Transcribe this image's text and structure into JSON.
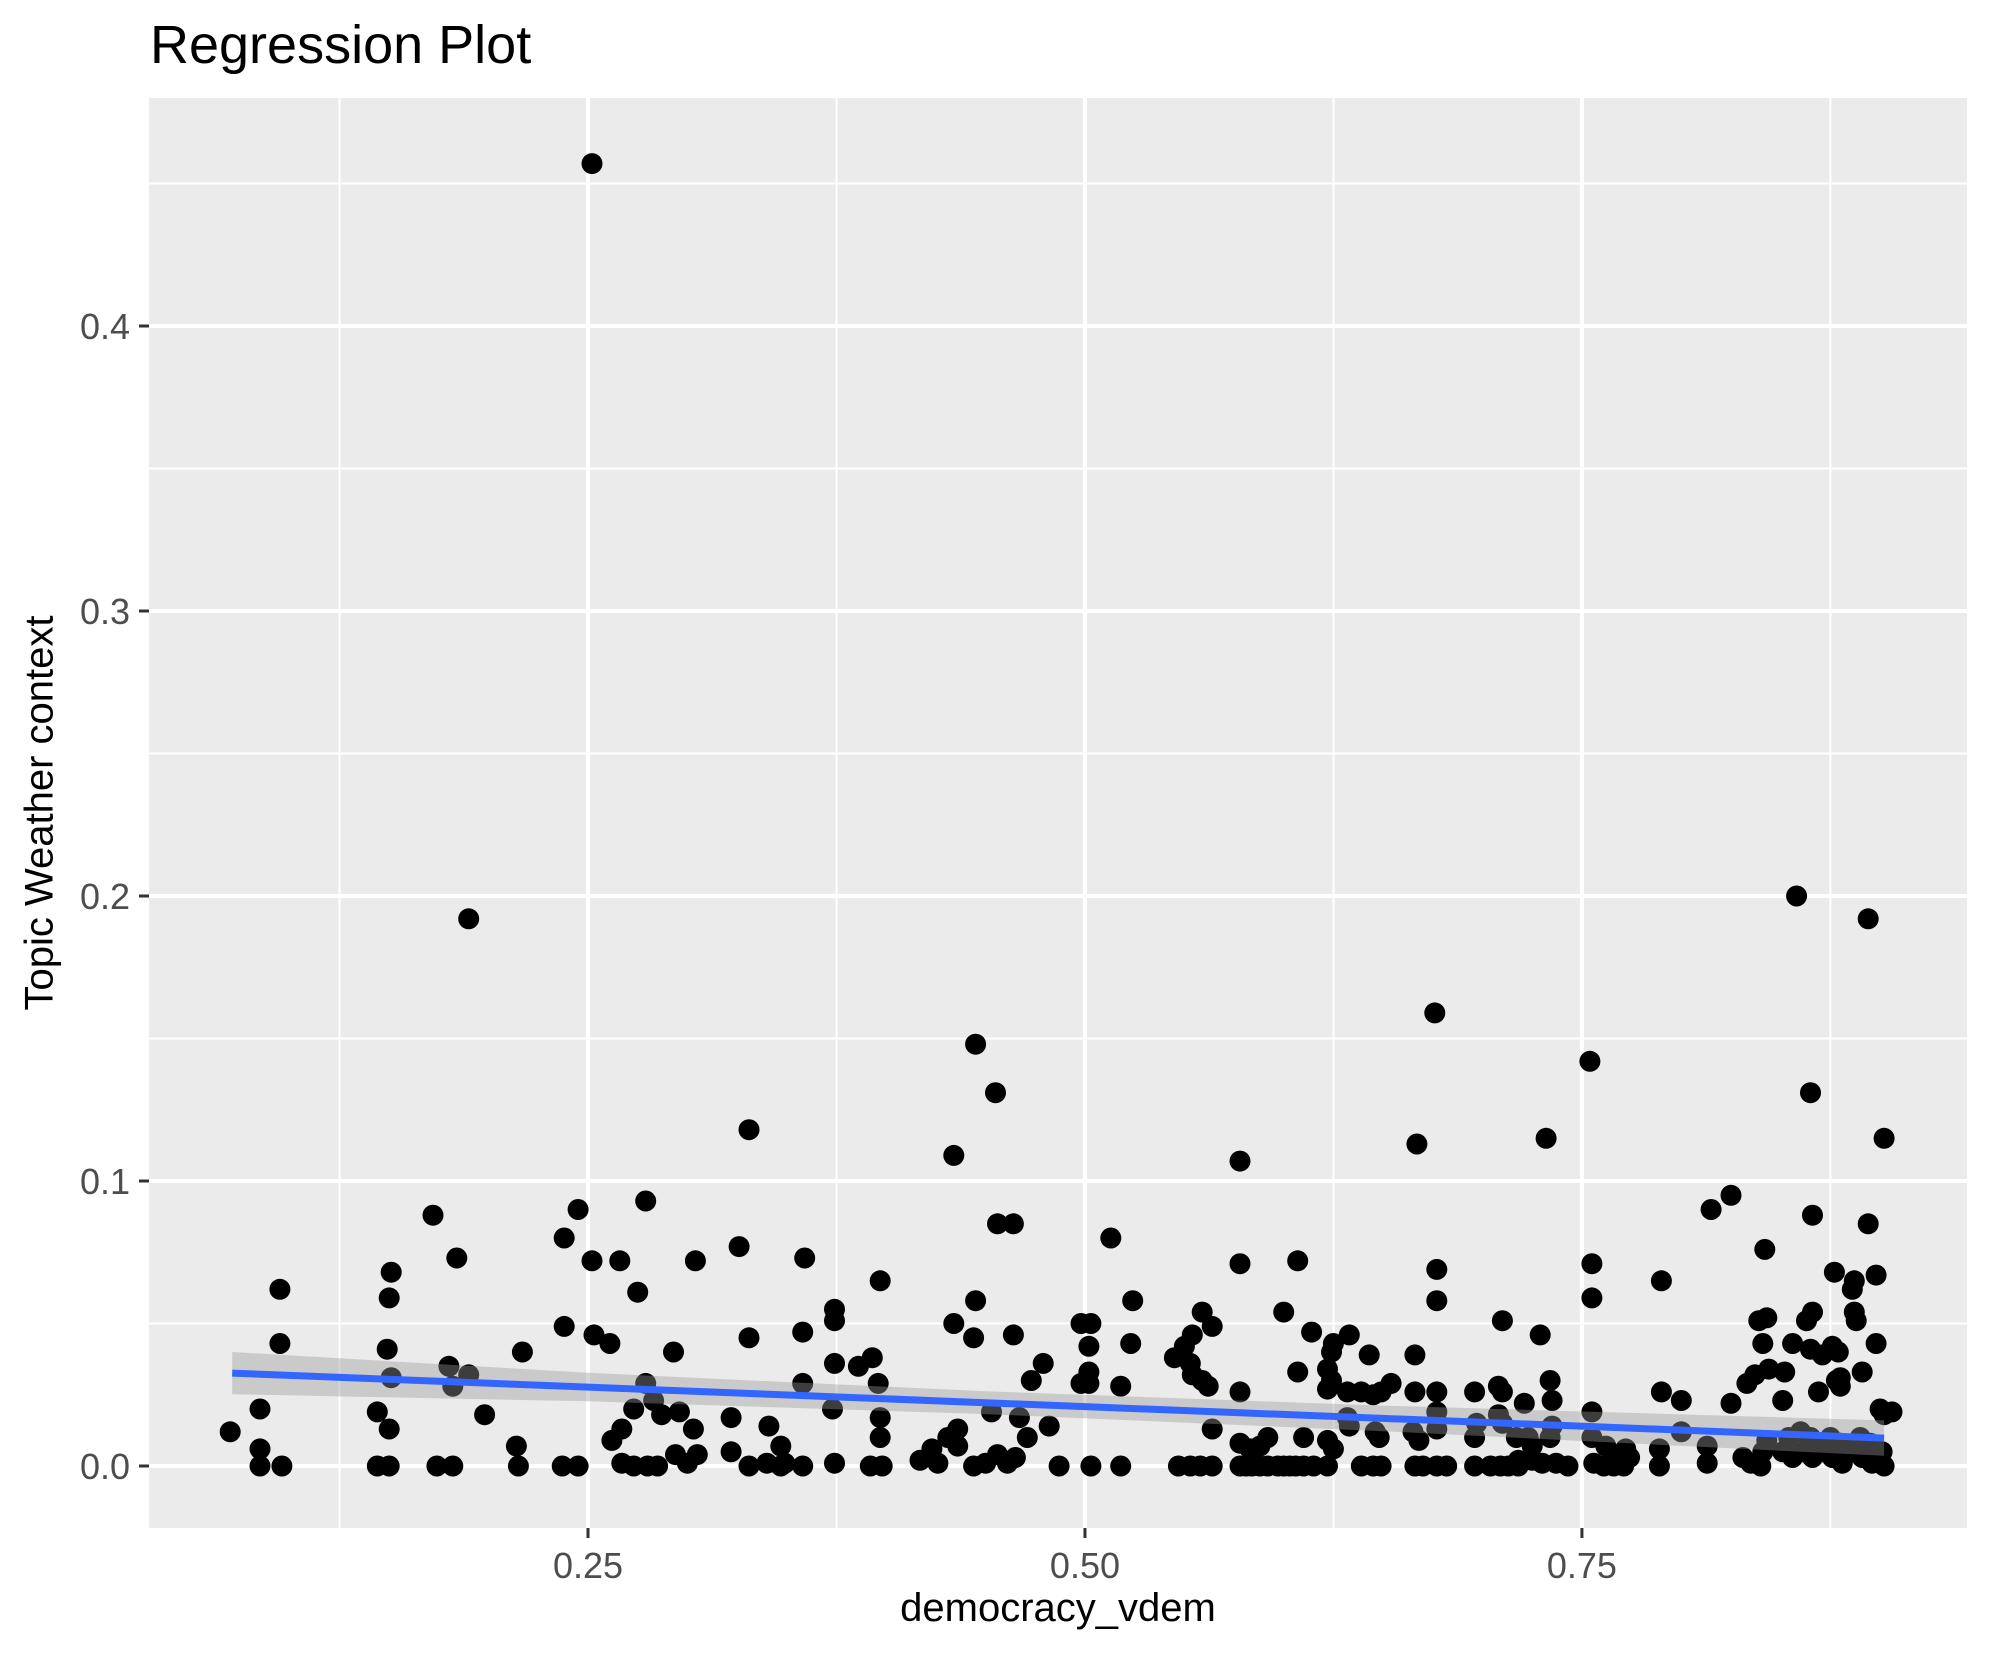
{
  "chart_data": {
    "type": "scatter",
    "title": "Regression Plot",
    "xlabel": "democracy_vdem",
    "ylabel": "Topic Weather context",
    "legend": "none",
    "panel_background": "#EBEBEB",
    "grid": "on",
    "x_axis": {
      "domain": [
        0.02915,
        0.94372
      ],
      "major_ticks": [
        0.25,
        0.5,
        0.75
      ],
      "tick_labels": [
        "0.25",
        "0.50",
        "0.75"
      ],
      "minor_ticks": [
        0.125,
        0.375,
        0.625,
        0.875
      ]
    },
    "y_axis": {
      "domain": [
        -0.02175,
        0.48
      ],
      "major_ticks": [
        0.0,
        0.1,
        0.2,
        0.3,
        0.4
      ],
      "tick_labels": [
        "0.0",
        "0.1",
        "0.2",
        "0.3",
        "0.4"
      ],
      "minor_ticks": [
        0.05,
        0.15,
        0.25,
        0.35,
        0.45
      ]
    },
    "colors": {
      "panel_bg": "#EBEBEB",
      "grid": "#FFFFFF",
      "point": "#000000",
      "smooth_line": "#3366FF",
      "ribbon": "#999999",
      "tick_label": "#4D4D4D",
      "tick_mark": "#333333",
      "title": "#000000",
      "axis_title": "#000000"
    },
    "point_radius": 10.5,
    "regression_line": {
      "x1": 0.071,
      "y1": 0.0326,
      "x2": 0.902,
      "y2": 0.0098
    },
    "ribbon": {
      "x": [
        0.071,
        0.25,
        0.45,
        0.65,
        0.902
      ],
      "upper": [
        0.04,
        0.0327,
        0.0262,
        0.0212,
        0.016
      ],
      "lower": [
        0.0252,
        0.0227,
        0.0182,
        0.0122,
        0.0036
      ]
    },
    "points": [
      [
        0.172,
        0.088
      ],
      [
        0.184,
        0.073
      ],
      [
        0.151,
        0.068
      ],
      [
        0.15,
        0.059
      ],
      [
        0.095,
        0.062
      ],
      [
        0.245,
        0.09
      ],
      [
        0.238,
        0.08
      ],
      [
        0.252,
        0.072
      ],
      [
        0.238,
        0.049
      ],
      [
        0.095,
        0.043
      ],
      [
        0.149,
        0.041
      ],
      [
        0.217,
        0.04
      ],
      [
        0.151,
        0.031
      ],
      [
        0.18,
        0.035
      ],
      [
        0.182,
        0.028
      ],
      [
        0.19,
        0.032
      ],
      [
        0.085,
        0.02
      ],
      [
        0.144,
        0.019
      ],
      [
        0.198,
        0.018
      ],
      [
        0.15,
        0.013
      ],
      [
        0.07,
        0.012
      ],
      [
        0.085,
        0.006
      ],
      [
        0.085,
        0.0
      ],
      [
        0.096,
        0.0
      ],
      [
        0.144,
        0.0
      ],
      [
        0.15,
        0.0
      ],
      [
        0.174,
        0.0
      ],
      [
        0.182,
        0.0
      ],
      [
        0.214,
        0.007
      ],
      [
        0.215,
        0.0
      ],
      [
        0.237,
        0.0
      ],
      [
        0.245,
        0.0
      ],
      [
        0.253,
        0.046
      ],
      [
        0.331,
        0.118
      ],
      [
        0.455,
        0.131
      ],
      [
        0.434,
        0.109
      ],
      [
        0.279,
        0.093
      ],
      [
        0.456,
        0.085
      ],
      [
        0.464,
        0.085
      ],
      [
        0.266,
        0.072
      ],
      [
        0.304,
        0.072
      ],
      [
        0.326,
        0.077
      ],
      [
        0.359,
        0.073
      ],
      [
        0.275,
        0.061
      ],
      [
        0.397,
        0.065
      ],
      [
        0.445,
        0.058
      ],
      [
        0.374,
        0.055
      ],
      [
        0.374,
        0.051
      ],
      [
        0.434,
        0.05
      ],
      [
        0.358,
        0.047
      ],
      [
        0.331,
        0.045
      ],
      [
        0.444,
        0.045
      ],
      [
        0.261,
        0.043
      ],
      [
        0.464,
        0.046
      ],
      [
        0.293,
        0.04
      ],
      [
        0.374,
        0.036
      ],
      [
        0.386,
        0.035
      ],
      [
        0.393,
        0.038
      ],
      [
        0.358,
        0.029
      ],
      [
        0.396,
        0.029
      ],
      [
        0.279,
        0.029
      ],
      [
        0.283,
        0.023
      ],
      [
        0.273,
        0.02
      ],
      [
        0.287,
        0.018
      ],
      [
        0.296,
        0.019
      ],
      [
        0.267,
        0.013
      ],
      [
        0.262,
        0.009
      ],
      [
        0.303,
        0.013
      ],
      [
        0.322,
        0.017
      ],
      [
        0.341,
        0.014
      ],
      [
        0.347,
        0.007
      ],
      [
        0.373,
        0.02
      ],
      [
        0.397,
        0.017
      ],
      [
        0.397,
        0.01
      ],
      [
        0.267,
        0.001
      ],
      [
        0.273,
        0.0
      ],
      [
        0.28,
        0.0
      ],
      [
        0.285,
        0.0
      ],
      [
        0.294,
        0.004
      ],
      [
        0.3,
        0.001
      ],
      [
        0.305,
        0.004
      ],
      [
        0.322,
        0.005
      ],
      [
        0.331,
        0.0
      ],
      [
        0.34,
        0.001
      ],
      [
        0.347,
        0.0
      ],
      [
        0.349,
        0.001
      ],
      [
        0.358,
        0.0
      ],
      [
        0.374,
        0.001
      ],
      [
        0.392,
        0.0
      ],
      [
        0.398,
        0.0
      ],
      [
        0.417,
        0.002
      ],
      [
        0.423,
        0.006
      ],
      [
        0.426,
        0.001
      ],
      [
        0.431,
        0.01
      ],
      [
        0.436,
        0.013
      ],
      [
        0.436,
        0.007
      ],
      [
        0.444,
        0.0
      ],
      [
        0.45,
        0.001
      ],
      [
        0.453,
        0.019
      ],
      [
        0.456,
        0.004
      ],
      [
        0.461,
        0.001
      ],
      [
        0.465,
        0.003
      ],
      [
        0.467,
        0.017
      ],
      [
        0.471,
        0.01
      ],
      [
        0.473,
        0.03
      ],
      [
        0.479,
        0.036
      ],
      [
        0.482,
        0.014
      ],
      [
        0.487,
        0.0
      ],
      [
        0.578,
        0.107
      ],
      [
        0.667,
        0.113
      ],
      [
        0.513,
        0.08
      ],
      [
        0.578,
        0.071
      ],
      [
        0.607,
        0.072
      ],
      [
        0.677,
        0.069
      ],
      [
        0.677,
        0.058
      ],
      [
        0.524,
        0.058
      ],
      [
        0.559,
        0.054
      ],
      [
        0.6,
        0.054
      ],
      [
        0.71,
        0.051
      ],
      [
        0.498,
        0.05
      ],
      [
        0.503,
        0.05
      ],
      [
        0.502,
        0.042
      ],
      [
        0.614,
        0.047
      ],
      [
        0.633,
        0.046
      ],
      [
        0.625,
        0.043
      ],
      [
        0.624,
        0.04
      ],
      [
        0.564,
        0.049
      ],
      [
        0.554,
        0.046
      ],
      [
        0.55,
        0.042
      ],
      [
        0.545,
        0.038
      ],
      [
        0.553,
        0.036
      ],
      [
        0.523,
        0.043
      ],
      [
        0.643,
        0.039
      ],
      [
        0.666,
        0.039
      ],
      [
        0.502,
        0.033
      ],
      [
        0.498,
        0.029
      ],
      [
        0.502,
        0.029
      ],
      [
        0.518,
        0.028
      ],
      [
        0.554,
        0.032
      ],
      [
        0.559,
        0.03
      ],
      [
        0.562,
        0.028
      ],
      [
        0.607,
        0.033
      ],
      [
        0.622,
        0.034
      ],
      [
        0.624,
        0.03
      ],
      [
        0.622,
        0.027
      ],
      [
        0.632,
        0.026
      ],
      [
        0.639,
        0.026
      ],
      [
        0.645,
        0.025
      ],
      [
        0.649,
        0.026
      ],
      [
        0.654,
        0.029
      ],
      [
        0.666,
        0.026
      ],
      [
        0.677,
        0.026
      ],
      [
        0.696,
        0.026
      ],
      [
        0.708,
        0.028
      ],
      [
        0.71,
        0.026
      ],
      [
        0.578,
        0.026
      ],
      [
        0.564,
        0.013
      ],
      [
        0.578,
        0.008
      ],
      [
        0.583,
        0.006
      ],
      [
        0.588,
        0.007
      ],
      [
        0.592,
        0.01
      ],
      [
        0.61,
        0.01
      ],
      [
        0.622,
        0.009
      ],
      [
        0.625,
        0.006
      ],
      [
        0.632,
        0.017
      ],
      [
        0.633,
        0.014
      ],
      [
        0.646,
        0.012
      ],
      [
        0.648,
        0.01
      ],
      [
        0.665,
        0.012
      ],
      [
        0.668,
        0.009
      ],
      [
        0.677,
        0.019
      ],
      [
        0.677,
        0.013
      ],
      [
        0.697,
        0.015
      ],
      [
        0.696,
        0.01
      ],
      [
        0.708,
        0.018
      ],
      [
        0.71,
        0.015
      ],
      [
        0.503,
        0.0
      ],
      [
        0.518,
        0.0
      ],
      [
        0.547,
        0.0
      ],
      [
        0.553,
        0.0
      ],
      [
        0.558,
        0.0
      ],
      [
        0.564,
        0.0
      ],
      [
        0.578,
        0.0
      ],
      [
        0.581,
        0.0
      ],
      [
        0.584,
        0.0
      ],
      [
        0.588,
        0.0
      ],
      [
        0.592,
        0.0
      ],
      [
        0.597,
        0.0
      ],
      [
        0.6,
        0.0
      ],
      [
        0.603,
        0.0
      ],
      [
        0.606,
        0.0
      ],
      [
        0.61,
        0.0
      ],
      [
        0.615,
        0.0
      ],
      [
        0.622,
        0.0
      ],
      [
        0.639,
        0.0
      ],
      [
        0.645,
        0.0
      ],
      [
        0.649,
        0.0
      ],
      [
        0.666,
        0.0
      ],
      [
        0.67,
        0.0
      ],
      [
        0.677,
        0.0
      ],
      [
        0.682,
        0.0
      ],
      [
        0.696,
        0.0
      ],
      [
        0.704,
        0.0
      ],
      [
        0.709,
        0.0
      ],
      [
        0.713,
        0.0
      ],
      [
        0.718,
        0.0
      ],
      [
        0.754,
        0.142
      ],
      [
        0.865,
        0.131
      ],
      [
        0.732,
        0.115
      ],
      [
        0.902,
        0.115
      ],
      [
        0.825,
        0.095
      ],
      [
        0.815,
        0.09
      ],
      [
        0.866,
        0.088
      ],
      [
        0.894,
        0.085
      ],
      [
        0.842,
        0.076
      ],
      [
        0.755,
        0.071
      ],
      [
        0.877,
        0.068
      ],
      [
        0.887,
        0.065
      ],
      [
        0.898,
        0.067
      ],
      [
        0.79,
        0.065
      ],
      [
        0.755,
        0.059
      ],
      [
        0.886,
        0.062
      ],
      [
        0.866,
        0.054
      ],
      [
        0.863,
        0.051
      ],
      [
        0.839,
        0.051
      ],
      [
        0.843,
        0.052
      ],
      [
        0.887,
        0.054
      ],
      [
        0.888,
        0.051
      ],
      [
        0.729,
        0.046
      ],
      [
        0.841,
        0.043
      ],
      [
        0.844,
        0.034
      ],
      [
        0.856,
        0.043
      ],
      [
        0.865,
        0.041
      ],
      [
        0.871,
        0.039
      ],
      [
        0.876,
        0.042
      ],
      [
        0.879,
        0.04
      ],
      [
        0.898,
        0.043
      ],
      [
        0.833,
        0.029
      ],
      [
        0.837,
        0.032
      ],
      [
        0.852,
        0.033
      ],
      [
        0.851,
        0.023
      ],
      [
        0.88,
        0.031
      ],
      [
        0.891,
        0.033
      ],
      [
        0.734,
        0.03
      ],
      [
        0.735,
        0.023
      ],
      [
        0.721,
        0.022
      ],
      [
        0.79,
        0.026
      ],
      [
        0.8,
        0.023
      ],
      [
        0.825,
        0.022
      ],
      [
        0.869,
        0.026
      ],
      [
        0.878,
        0.03
      ],
      [
        0.88,
        0.028
      ],
      [
        0.9,
        0.02
      ],
      [
        0.902,
        0.018
      ],
      [
        0.755,
        0.019
      ],
      [
        0.755,
        0.01
      ],
      [
        0.762,
        0.007
      ],
      [
        0.767,
        0.004
      ],
      [
        0.772,
        0.006
      ],
      [
        0.774,
        0.003
      ],
      [
        0.735,
        0.014
      ],
      [
        0.734,
        0.01
      ],
      [
        0.717,
        0.01
      ],
      [
        0.723,
        0.01
      ],
      [
        0.725,
        0.007
      ],
      [
        0.718,
        0.002
      ],
      [
        0.725,
        0.002
      ],
      [
        0.73,
        0.001
      ],
      [
        0.737,
        0.001
      ],
      [
        0.743,
        0.0
      ],
      [
        0.756,
        0.001
      ],
      [
        0.761,
        0.0
      ],
      [
        0.766,
        0.0
      ],
      [
        0.771,
        0.0
      ],
      [
        0.789,
        0.006
      ],
      [
        0.789,
        0.0
      ],
      [
        0.8,
        0.012
      ],
      [
        0.813,
        0.007
      ],
      [
        0.813,
        0.001
      ],
      [
        0.831,
        0.003
      ],
      [
        0.835,
        0.001
      ],
      [
        0.84,
        0.0
      ],
      [
        0.841,
        0.005
      ],
      [
        0.843,
        0.009
      ],
      [
        0.854,
        0.01
      ],
      [
        0.86,
        0.012
      ],
      [
        0.865,
        0.01
      ],
      [
        0.87,
        0.008
      ],
      [
        0.875,
        0.01
      ],
      [
        0.88,
        0.008
      ],
      [
        0.885,
        0.007
      ],
      [
        0.89,
        0.01
      ],
      [
        0.895,
        0.008
      ],
      [
        0.851,
        0.005
      ],
      [
        0.856,
        0.003
      ],
      [
        0.861,
        0.005
      ],
      [
        0.866,
        0.003
      ],
      [
        0.871,
        0.005
      ],
      [
        0.876,
        0.003
      ],
      [
        0.881,
        0.001
      ],
      [
        0.886,
        0.005
      ],
      [
        0.891,
        0.003
      ],
      [
        0.896,
        0.001
      ],
      [
        0.901,
        0.005
      ],
      [
        0.902,
        0.0
      ],
      [
        0.906,
        0.019
      ],
      [
        0.252,
        0.457
      ],
      [
        0.19,
        0.192
      ],
      [
        0.445,
        0.148
      ],
      [
        0.676,
        0.159
      ],
      [
        0.858,
        0.2
      ],
      [
        0.894,
        0.192
      ]
    ]
  }
}
